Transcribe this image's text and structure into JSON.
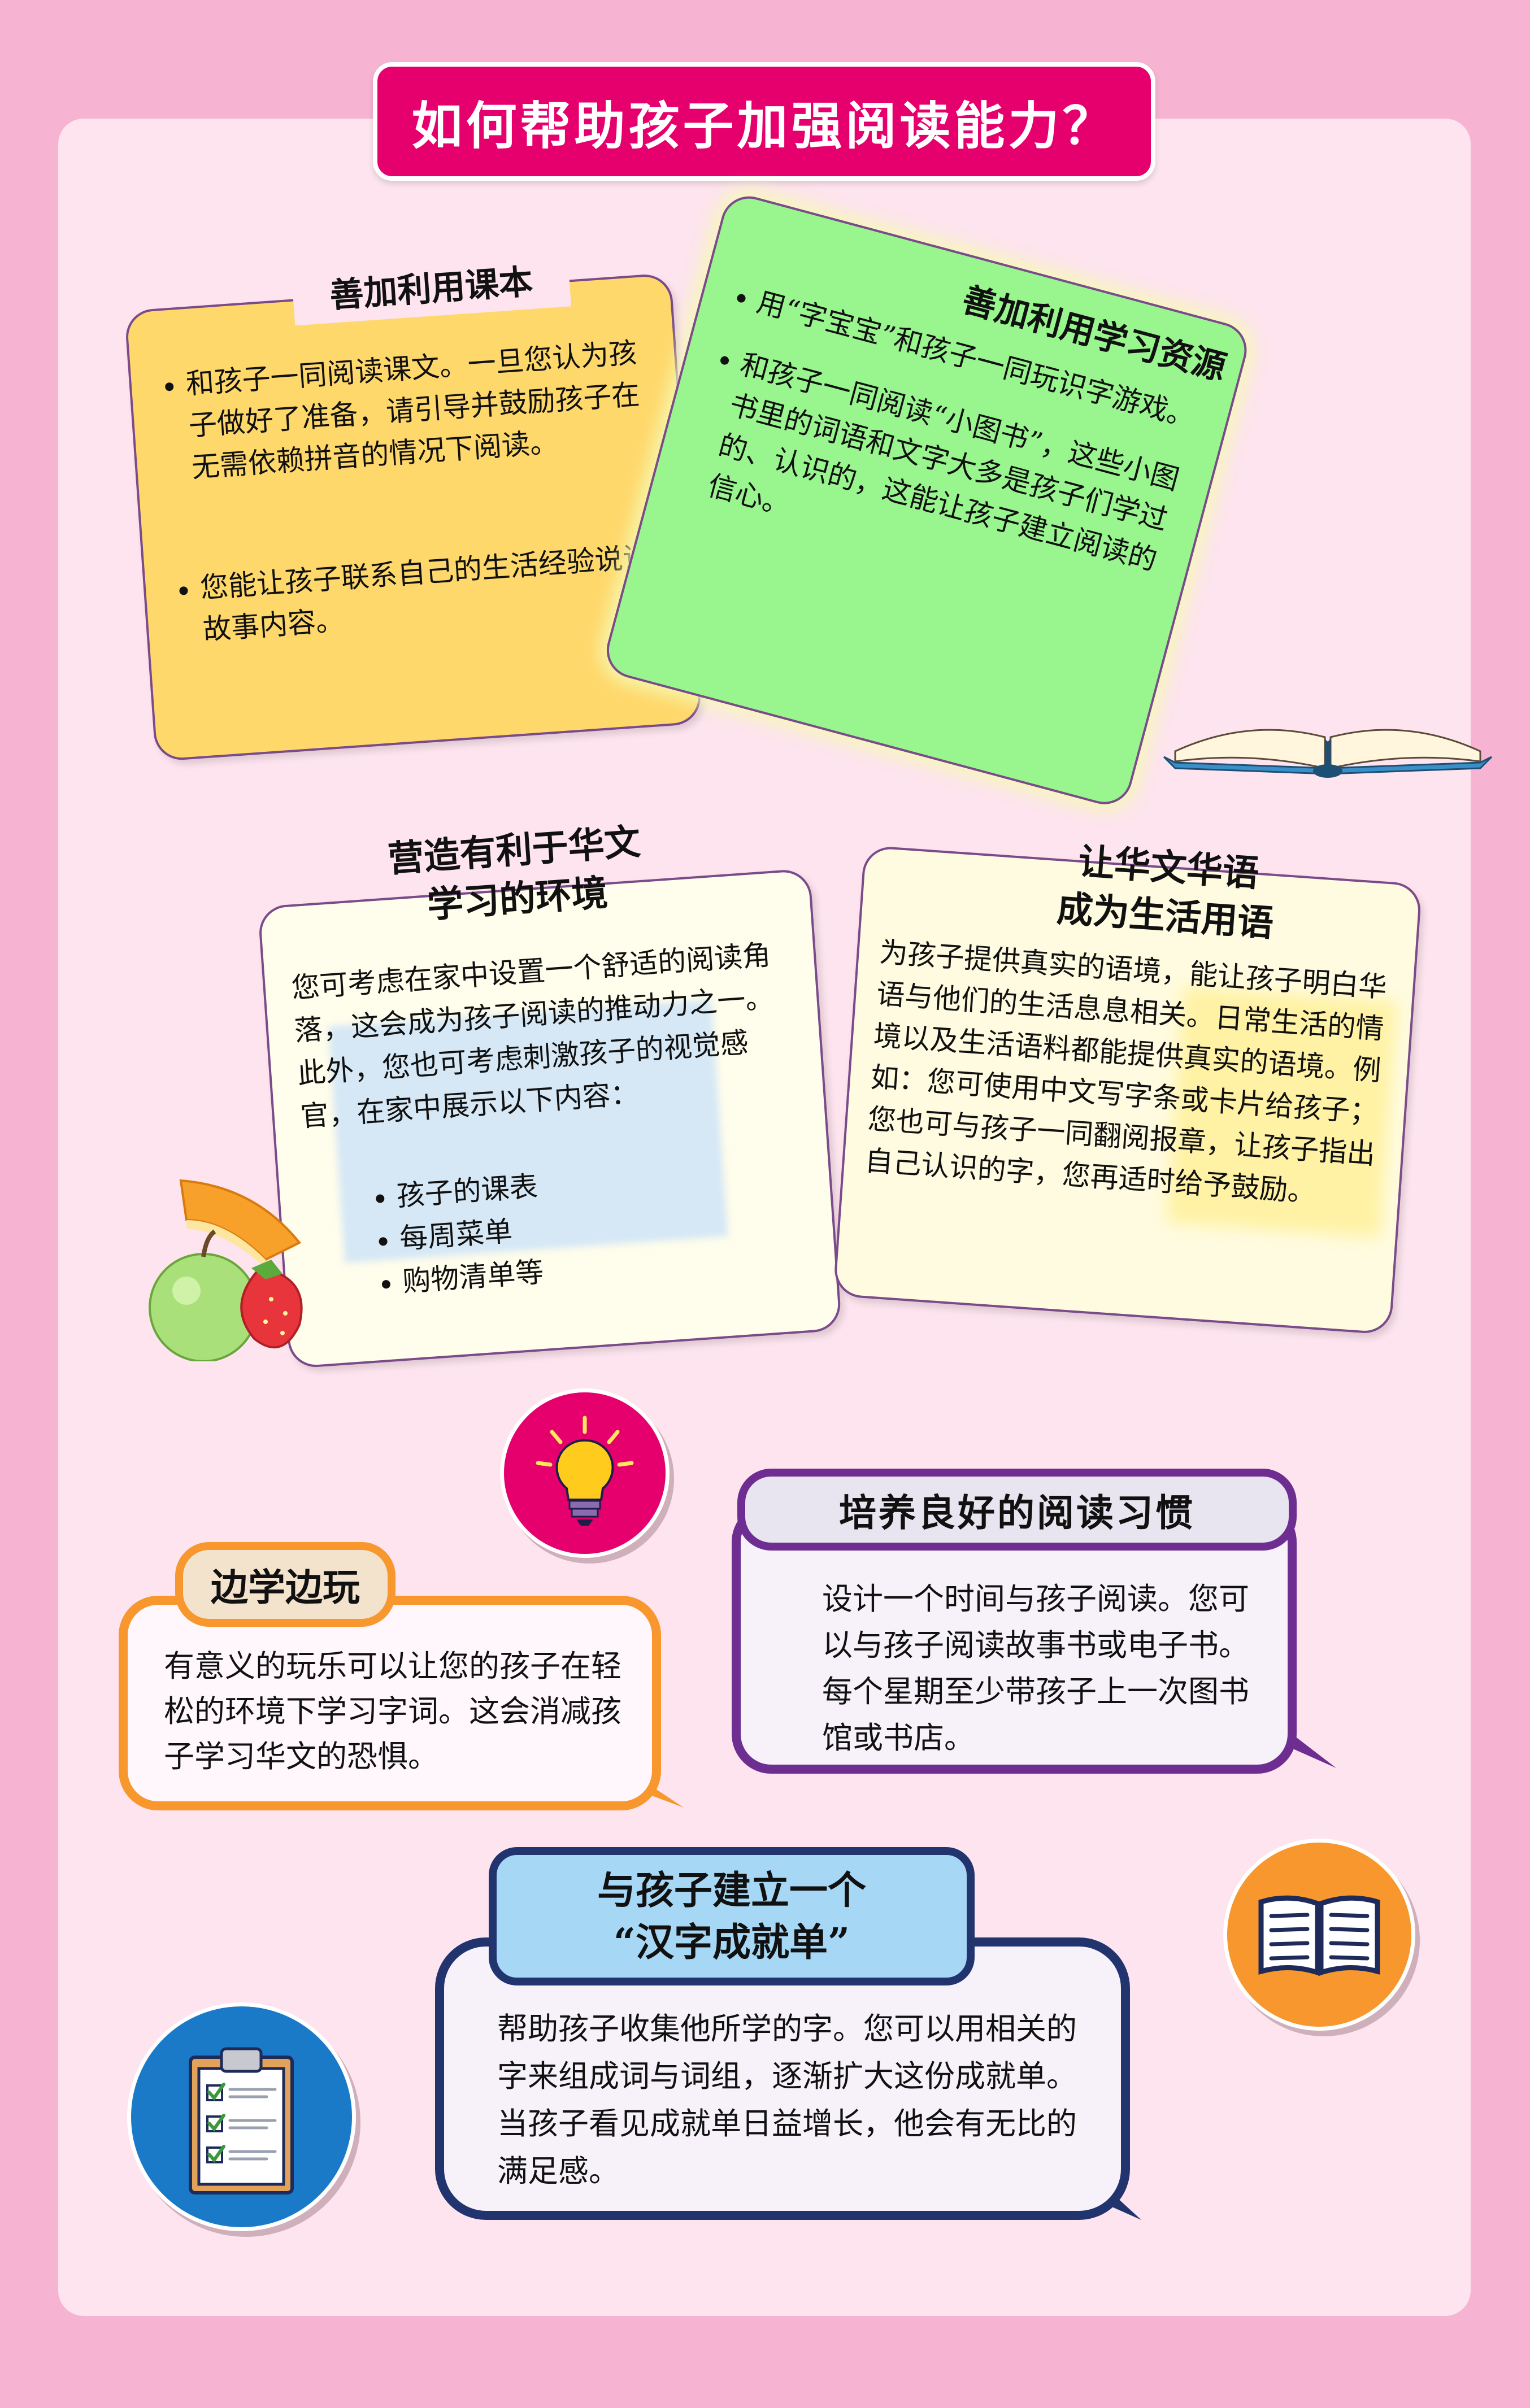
{
  "title": "如何帮助孩子加强阅读能力？",
  "textbook": {
    "heading": "善加利用课本",
    "bullets": [
      "和孩子一同阅读课文。一旦您认为孩子做好了准备，请引导并鼓励孩子在无需依赖拼音的情况下阅读。",
      "您能让孩子联系自己的生活经验说说故事内容。"
    ]
  },
  "resources": {
    "heading": "善加利用学习资源",
    "bullets": [
      "用“字宝宝”和孩子一同玩识字游戏。",
      "和孩子一同阅读“小图书”，这些小图书里的词语和文字大多是孩子们学过的、认识的，这能让孩子建立阅读的信心。"
    ]
  },
  "environment": {
    "heading_line1": "营造有利于华文",
    "heading_line2": "学习的环境",
    "intro": "您可考虑在家中设置一个舒适的阅读角落，这会成为孩子阅读的推动力之一。此外，您也可考虑刺激孩子的视觉感官，在家中展示以下内容：",
    "items": [
      "孩子的课表",
      "每周菜单",
      "购物清单等"
    ]
  },
  "daily": {
    "heading_line1": "让华文华语",
    "heading_line2": "成为生活用语",
    "body": "为孩子提供真实的语境，能让孩子明白华语与他们的生活息息相关。日常生活的情境以及生活语料都能提供真实的语境。例如：您可使用中文写字条或卡片给孩子；您也可与孩子一同翻阅报章，让孩子指出自己认识的字，您再适时给予鼓励。"
  },
  "play": {
    "heading": "边学边玩",
    "body": "有意义的玩乐可以让您的孩子在轻松的环境下学习字词。这会消减孩子学习华文的恐惧。"
  },
  "habit": {
    "heading": "培养良好的阅读习惯",
    "body": "设计一个时间与孩子阅读。您可以与孩子阅读故事书或电子书。每个星期至少带孩子上一次图书馆或书店。"
  },
  "achievement": {
    "heading_line1": "与孩子建立一个",
    "heading_line2": "“汉字成就单”",
    "body": "帮助孩子收集他所学的字。您可以用相关的字来组成词与词组，逐渐扩大这份成就单。当孩子看见成就单日益增长，他会有无比的满足感。"
  },
  "icons": {
    "book": "open-book-icon",
    "fruit": "fruit-icon",
    "bulb": "lightbulb-icon",
    "reading": "reading-book-icon",
    "checklist": "clipboard-checklist-icon"
  },
  "colors": {
    "title_bg": "#e6006e",
    "textbook_card": "#ffd86b",
    "resources_card": "#99f58e",
    "play_border": "#f7972d",
    "habit_border": "#6e2d91",
    "achievement_border": "#22346e",
    "bulb_circle": "#e6006e",
    "reading_circle": "#f7972d",
    "checklist_circle": "#1a7ac7"
  }
}
